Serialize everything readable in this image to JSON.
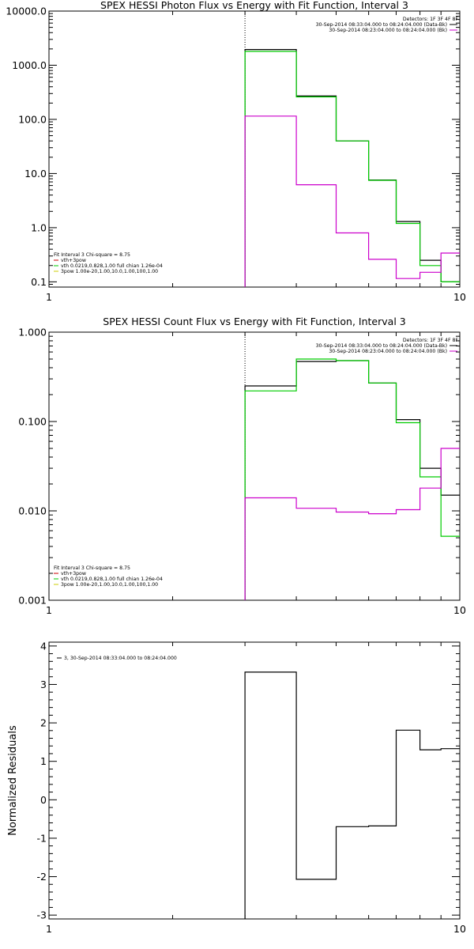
{
  "chart_data": [
    {
      "type": "line",
      "title": "SPEX HESSI Photon Flux vs Energy with Fit Function, Interval 3",
      "xlabel": "",
      "ylabel": "",
      "x_scale": "log",
      "y_scale": "log",
      "xlim": [
        1,
        10
      ],
      "ylim": [
        0.08,
        10000
      ],
      "x_tick_labels": [
        {
          "value": 1,
          "label": "1"
        },
        {
          "value": 10,
          "label": "10"
        }
      ],
      "y_tick_labels": [
        {
          "value": 0.1,
          "label": "0.1"
        },
        {
          "value": 1,
          "label": "1.0"
        },
        {
          "value": 10,
          "label": "10.0"
        },
        {
          "value": 100,
          "label": "100.0"
        },
        {
          "value": 1000,
          "label": "1000.0"
        },
        {
          "value": 10000,
          "label": "10000.0"
        }
      ],
      "vline": 3.0,
      "bin_edges": [
        3.0,
        4.0,
        5.0,
        6.0,
        7.0,
        8.0,
        9.0,
        10.0
      ],
      "series": [
        {
          "color": "#000000",
          "values": [
            1950,
            270,
            40,
            7.6,
            1.3,
            0.25,
            0.1
          ]
        },
        {
          "color": "#00cc00",
          "values": [
            1800,
            260,
            40,
            7.5,
            1.2,
            0.2,
            0.1
          ]
        },
        {
          "color": "#cc00cc",
          "values": [
            115,
            6.2,
            0.8,
            0.26,
            0.115,
            0.15,
            0.34
          ]
        }
      ],
      "legend_top_right": {
        "lines": [
          {
            "text": "Detectors: 1F 3F 4F 8F",
            "color": null
          },
          {
            "text": "30-Sep-2014 08:33:04.000 to 08:24:04.000 (Data-Bk)",
            "color": "#000000"
          },
          {
            "text": "30-Sep-2014 08:23:04.000 to 08:24:04.000 (Bk)",
            "color": "#cc00cc"
          }
        ]
      },
      "legend_bottom_left": {
        "lines": [
          {
            "text": "Fit Interval 3   Chi-square = 8.75",
            "color": null
          },
          {
            "text": "vth+3pow",
            "color": "#cc0000"
          },
          {
            "text": "vth 0.0219,0.828,1.00  full chian 1.26e-04",
            "color": "#00cc00"
          },
          {
            "text": "3pow 1.00e-20,1.00,10.0,1.00,100,1.00",
            "color": "#cccc00"
          }
        ]
      }
    },
    {
      "type": "line",
      "title": "SPEX HESSI Count Flux vs Energy with Fit Function, Interval 3",
      "xlabel": "",
      "ylabel": "",
      "x_scale": "log",
      "y_scale": "log",
      "xlim": [
        1,
        10
      ],
      "ylim": [
        0.001,
        1.0
      ],
      "x_tick_labels": [
        {
          "value": 1,
          "label": "1"
        },
        {
          "value": 10,
          "label": "10"
        }
      ],
      "y_tick_labels": [
        {
          "value": 0.001,
          "label": "0.001"
        },
        {
          "value": 0.01,
          "label": "0.010"
        },
        {
          "value": 0.1,
          "label": "0.100"
        },
        {
          "value": 1.0,
          "label": "1.000"
        }
      ],
      "vline": 3.0,
      "bin_edges": [
        3.0,
        4.0,
        5.0,
        6.0,
        7.0,
        8.0,
        9.0,
        10.0
      ],
      "series": [
        {
          "color": "#000000",
          "values": [
            0.25,
            0.47,
            0.48,
            0.27,
            0.105,
            0.03,
            0.015
          ]
        },
        {
          "color": "#00cc00",
          "values": [
            0.22,
            0.5,
            0.48,
            0.27,
            0.097,
            0.024,
            0.0052
          ]
        },
        {
          "color": "#cc00cc",
          "values": [
            0.014,
            0.0107,
            0.0097,
            0.0093,
            0.0103,
            0.018,
            0.05
          ]
        }
      ],
      "legend_top_right": {
        "lines": [
          {
            "text": "Detectors: 1F 3F 4F 8F",
            "color": null
          },
          {
            "text": "30-Sep-2014 08:33:04.000 to 08:24:04.000 (Data-Bk)",
            "color": "#000000"
          },
          {
            "text": "30-Sep-2014 08:23:04.000 to 08:24:04.000 (Bk)",
            "color": "#cc00cc"
          }
        ]
      },
      "legend_bottom_left": {
        "lines": [
          {
            "text": "Fit Interval 3   Chi-square = 8.75",
            "color": null
          },
          {
            "text": "vth+3pow",
            "color": "#cc0000"
          },
          {
            "text": "vth 0.0219,0.828,1.00  full chian 1.26e-04",
            "color": "#00cc00"
          },
          {
            "text": "3pow 1.00e-20,1.00,10.0,1.00,100,1.00",
            "color": "#cccc00"
          }
        ]
      }
    },
    {
      "type": "line",
      "title": "",
      "xlabel": "",
      "ylabel": "Normalized  Residuals",
      "x_scale": "log",
      "y_scale": "linear",
      "xlim": [
        1,
        10
      ],
      "ylim": [
        -3.1,
        4.1
      ],
      "x_tick_labels": [
        {
          "value": 1,
          "label": "1"
        },
        {
          "value": 10,
          "label": "10"
        }
      ],
      "y_tick_labels": [
        {
          "value": -3,
          "label": "-3"
        },
        {
          "value": -2,
          "label": "-2"
        },
        {
          "value": -1,
          "label": "-1"
        },
        {
          "value": 0,
          "label": "0"
        },
        {
          "value": 1,
          "label": "1"
        },
        {
          "value": 2,
          "label": "2"
        },
        {
          "value": 3,
          "label": "3"
        },
        {
          "value": 4,
          "label": "4"
        }
      ],
      "bin_edges": [
        3.0,
        4.0,
        5.0,
        6.0,
        7.0,
        8.0,
        9.0,
        10.0
      ],
      "series": [
        {
          "color": "#000000",
          "values": [
            3.32,
            -2.07,
            -0.7,
            -0.68,
            1.81,
            1.3,
            1.33
          ]
        }
      ],
      "legend_top_left": {
        "lines": [
          {
            "text": "3, 30-Sep-2014 08:33:04.000 to 08:24:04.000",
            "color": "#000000"
          }
        ]
      }
    }
  ]
}
